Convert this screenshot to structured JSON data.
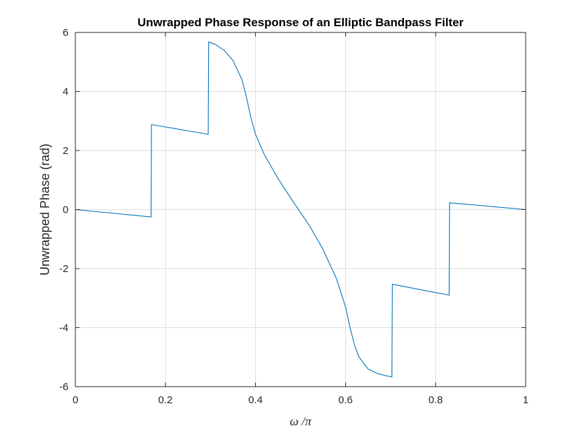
{
  "chart_data": {
    "type": "line",
    "title": "Unwrapped Phase Response of an Elliptic Bandpass Filter",
    "xlabel": "ω /π",
    "ylabel": "Unwrapped Phase (rad)",
    "xlim": [
      0,
      1
    ],
    "ylim": [
      -6,
      6
    ],
    "xticks": [
      0,
      0.2,
      0.4,
      0.6,
      0.8,
      1
    ],
    "xtick_labels": [
      "0",
      "0.2",
      "0.4",
      "0.6",
      "0.8",
      "1"
    ],
    "yticks": [
      -6,
      -4,
      -2,
      0,
      2,
      4,
      6
    ],
    "ytick_labels": [
      "-6",
      "-4",
      "-2",
      "0",
      "2",
      "4",
      "6"
    ],
    "grid": true,
    "line_color": "#0072BD",
    "series": [
      {
        "x": [
          0,
          0.168,
          0.169,
          0.295,
          0.296,
          0.31,
          0.33,
          0.35,
          0.37,
          0.38,
          0.39,
          0.4,
          0.42,
          0.45,
          0.48,
          0.5,
          0.52,
          0.55,
          0.58,
          0.6,
          0.61,
          0.62,
          0.63,
          0.65,
          0.67,
          0.69,
          0.703,
          0.704,
          0.83,
          0.831,
          1
        ],
        "y": [
          0,
          -0.25,
          2.88,
          2.55,
          5.68,
          5.6,
          5.4,
          5.05,
          4.4,
          3.8,
          3.1,
          2.55,
          1.85,
          1.05,
          0.35,
          -0.1,
          -0.55,
          -1.35,
          -2.35,
          -3.3,
          -4.0,
          -4.6,
          -5.0,
          -5.4,
          -5.55,
          -5.63,
          -5.67,
          -2.53,
          -2.9,
          0.23,
          0
        ]
      }
    ]
  }
}
